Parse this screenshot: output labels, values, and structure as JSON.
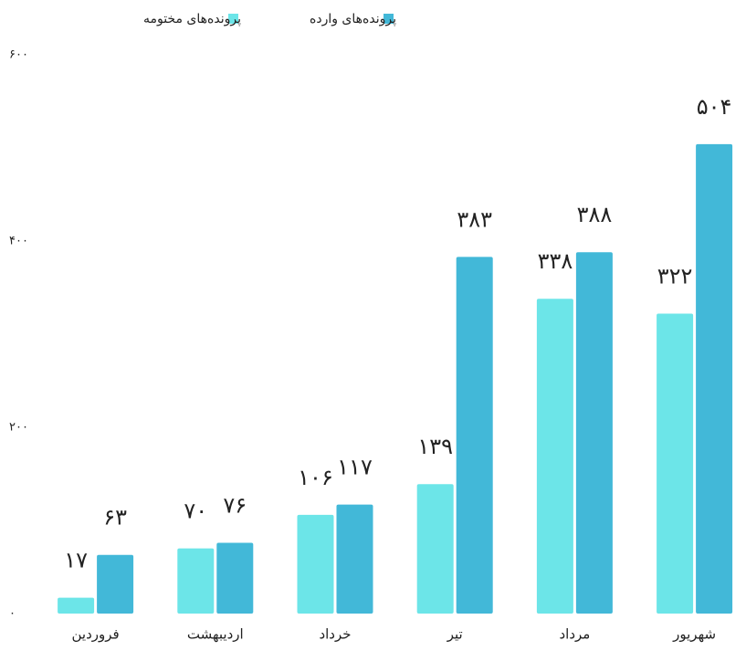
{
  "chart_data": {
    "type": "bar",
    "categories": [
      "فروردین",
      "اردیبهشت",
      "خرداد",
      "تیر",
      "مرداد",
      "شهریور"
    ],
    "series": [
      {
        "name": "پرونده‌های مختومه",
        "color": "#6ce5e8",
        "values": [
          17,
          70,
          106,
          139,
          338,
          322
        ],
        "value_labels": [
          "۱۷",
          "۷۰",
          "۱۰۶",
          "۱۳۹",
          "۳۳۸",
          "۳۲۲"
        ]
      },
      {
        "name": "پرونده‌های وارده",
        "color": "#42b8d8",
        "values": [
          63,
          76,
          117,
          383,
          388,
          504
        ],
        "value_labels": [
          "۶۳",
          "۷۶",
          "۱۱۷",
          "۳۸۳",
          "۳۸۸",
          "۵۰۴"
        ]
      }
    ],
    "ylim": [
      0,
      600
    ],
    "yticks": [
      {
        "value": 0,
        "label": "۰"
      },
      {
        "value": 200,
        "label": "۲۰۰"
      },
      {
        "value": 400,
        "label": "۴۰۰"
      },
      {
        "value": 600,
        "label": "۶۰۰"
      }
    ]
  }
}
